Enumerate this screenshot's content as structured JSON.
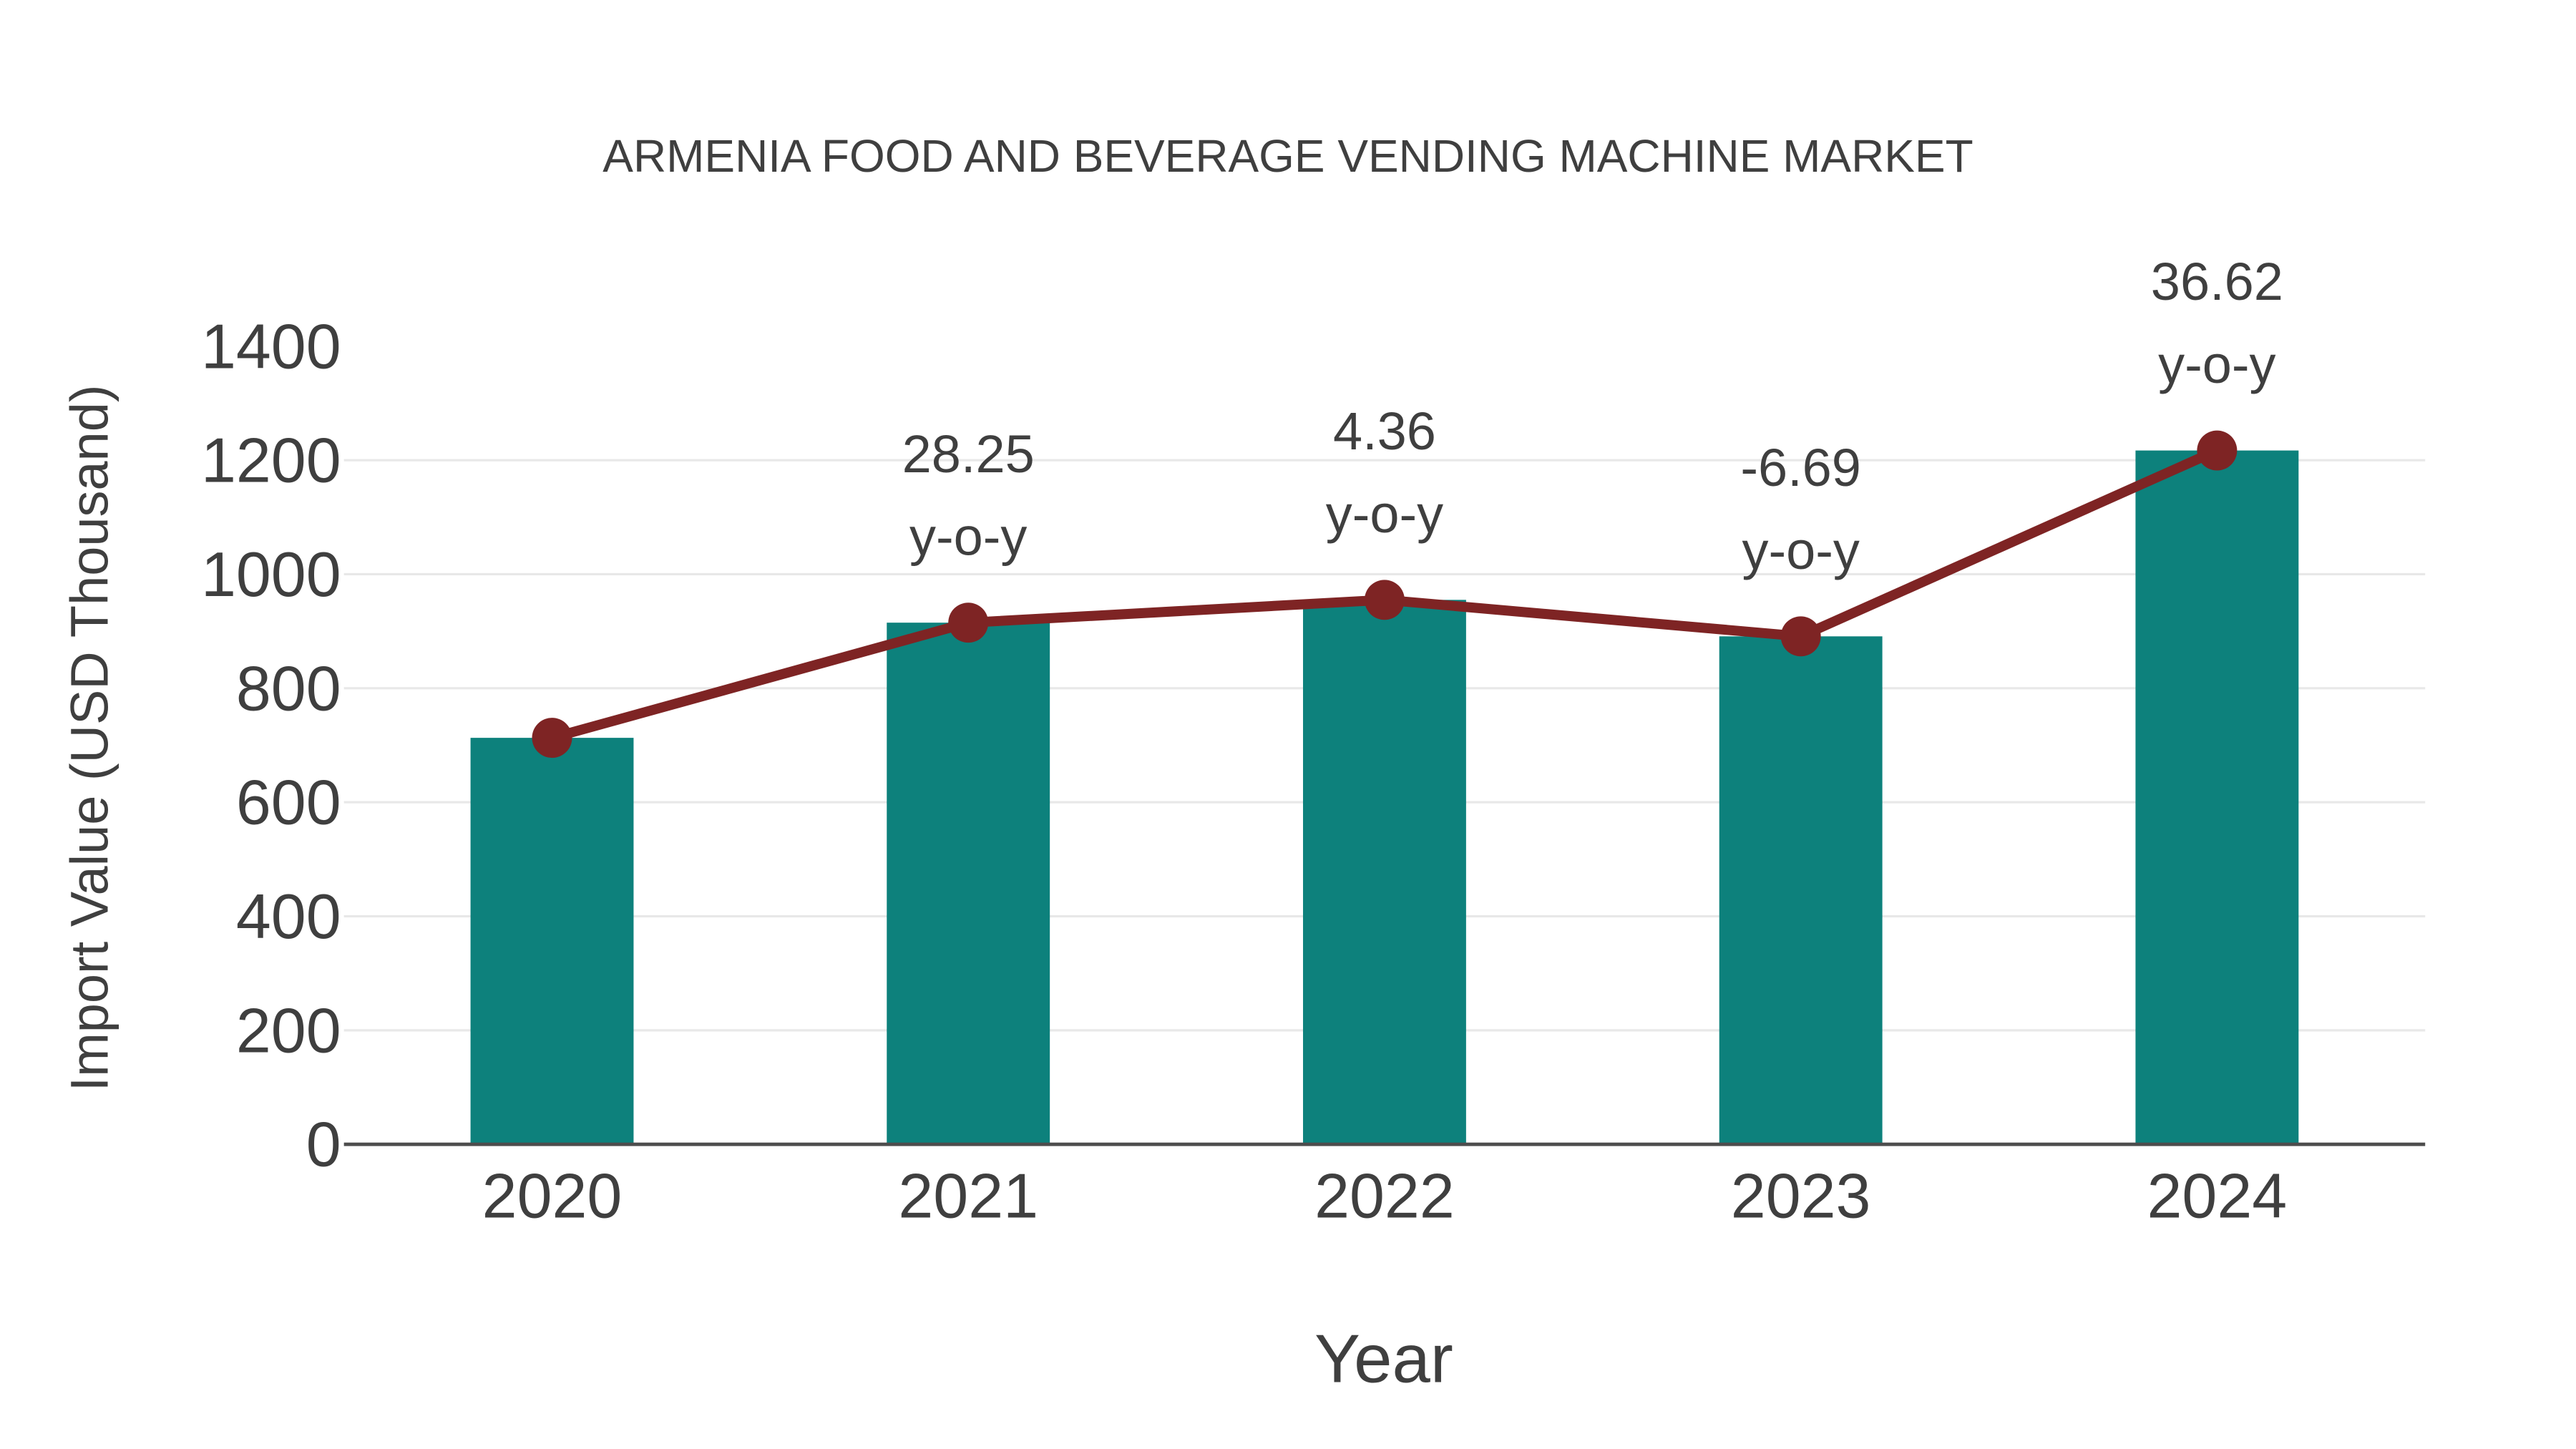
{
  "page": {
    "background": "#ffffff"
  },
  "chart_data": {
    "type": "combo",
    "title": "ARMENIA FOOD AND BEVERAGE VENDING MACHINE MARKET",
    "xlabel": "Year",
    "ylabel": "Import Value (USD Thousand)",
    "categories": [
      "2020",
      "2021",
      "2022",
      "2023",
      "2024"
    ],
    "series": [
      {
        "name": "Import Value",
        "type": "bar",
        "color": "#0d817c",
        "values": [
          713,
          915,
          955,
          891,
          1217
        ]
      },
      {
        "name": "Import Value trend",
        "type": "line",
        "color": "#7e2424",
        "values": [
          713,
          915,
          955,
          891,
          1217
        ]
      }
    ],
    "annotations": [
      {
        "category": "2021",
        "text": "28.25",
        "suffix": "y-o-y"
      },
      {
        "category": "2022",
        "text": "4.36",
        "suffix": "y-o-y"
      },
      {
        "category": "2023",
        "text": "-6.69",
        "suffix": "y-o-y"
      },
      {
        "category": "2024",
        "text": "36.62",
        "suffix": "y-o-y"
      }
    ],
    "ylim": [
      0,
      1400
    ],
    "yticks": [
      0,
      200,
      400,
      600,
      800,
      1000,
      1200,
      1400
    ],
    "gridline_ticks": [
      200,
      400,
      600,
      800,
      1000,
      1200
    ],
    "grid": true,
    "legend": "none",
    "text_color": "#3f3f3f",
    "axis_line_color": "#4d4d4d",
    "gridline_color": "#e8e8e8"
  }
}
